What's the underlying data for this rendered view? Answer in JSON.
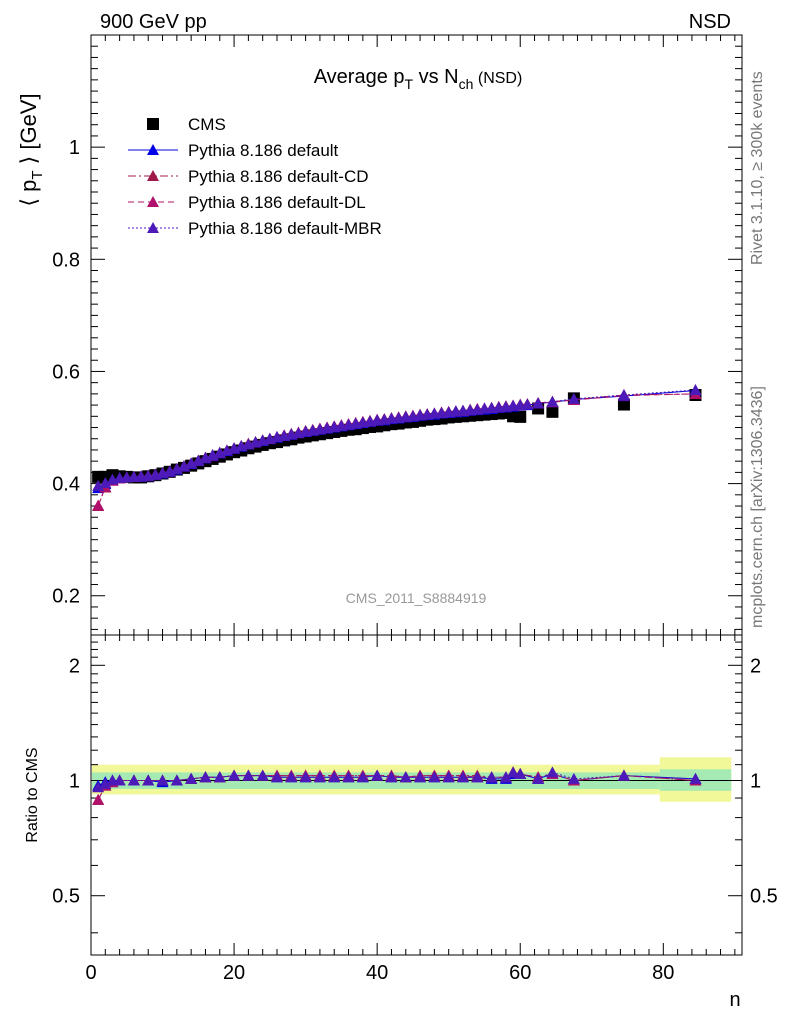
{
  "header": {
    "left_label": "900 GeV pp",
    "right_label": "NSD",
    "side_top": "Rivet 3.1.10, ≥ 300k events",
    "side_bottom": "mcplots.cern.ch [arXiv:1306.3436]",
    "watermark": "CMS_2011_S8884919"
  },
  "title": {
    "main": "Average p",
    "main_sub": "T",
    "mid": " vs N",
    "mid_sub": "ch",
    "suffix": " (NSD)"
  },
  "axes": {
    "ylabel_top": "⟨ p",
    "ylabel_top_sub": "T",
    "ylabel_top_end": " ⟩ [GeV]",
    "ylabel_bottom": "Ratio to CMS",
    "xlabel": "n"
  },
  "legend": [
    {
      "label": "CMS",
      "color": "#000000",
      "marker": "square",
      "line": "none"
    },
    {
      "label": "Pythia 8.186 default",
      "color": "#0000e6",
      "marker": "triangle",
      "line": "solid"
    },
    {
      "label": "Pythia 8.186 default-CD",
      "color": "#a0184a",
      "marker": "triangle",
      "line": "dashdot"
    },
    {
      "label": "Pythia 8.186 default-DL",
      "color": "#b0106a",
      "marker": "triangle",
      "line": "dashed"
    },
    {
      "label": "Pythia 8.186 default-MBR",
      "color": "#4b1ab8",
      "marker": "triangle",
      "line": "dotted"
    }
  ],
  "chart_data": [
    {
      "type": "scatter",
      "xlabel": "n",
      "ylabel": "⟨ pT ⟩ [GeV]",
      "xlim": [
        0,
        91
      ],
      "ylim": [
        0.13,
        1.2
      ],
      "xticks": [
        0,
        20,
        40,
        60,
        80
      ],
      "yticks": [
        0.2,
        0.4,
        0.6,
        0.8,
        1
      ],
      "series": [
        {
          "name": "CMS",
          "x": [
            1,
            2,
            3,
            4,
            5,
            6,
            7,
            8,
            9,
            10,
            11,
            12,
            13,
            14,
            15,
            16,
            17,
            18,
            19,
            20,
            21,
            22,
            23,
            24,
            25,
            26,
            27,
            28,
            29,
            30,
            31,
            32,
            33,
            34,
            35,
            36,
            37,
            38,
            39,
            40,
            41,
            42,
            43,
            44,
            45,
            46,
            47,
            48,
            49,
            50,
            51,
            52,
            53,
            54,
            55,
            56,
            57,
            58,
            59,
            60,
            62.5,
            64.5,
            67.5,
            74.5,
            84.5
          ],
          "y": [
            0.412,
            0.412,
            0.415,
            0.413,
            0.412,
            0.411,
            0.411,
            0.413,
            0.415,
            0.418,
            0.421,
            0.425,
            0.428,
            0.432,
            0.436,
            0.44,
            0.444,
            0.448,
            0.452,
            0.456,
            0.459,
            0.463,
            0.466,
            0.469,
            0.472,
            0.474,
            0.477,
            0.479,
            0.482,
            0.484,
            0.486,
            0.488,
            0.49,
            0.492,
            0.494,
            0.496,
            0.497,
            0.499,
            0.501,
            0.502,
            0.504,
            0.506,
            0.507,
            0.509,
            0.51,
            0.512,
            0.514,
            0.515,
            0.516,
            0.518,
            0.519,
            0.52,
            0.521,
            0.522,
            0.523,
            0.524,
            0.525,
            0.526,
            0.52,
            0.519,
            0.534,
            0.528,
            0.552,
            0.541,
            0.558
          ]
        },
        {
          "name": "Pythia 8.186 default",
          "x": [
            1,
            2,
            3,
            4,
            5,
            6,
            7,
            8,
            9,
            10,
            11,
            12,
            13,
            14,
            15,
            16,
            17,
            18,
            19,
            20,
            21,
            22,
            23,
            24,
            25,
            26,
            27,
            28,
            29,
            30,
            31,
            32,
            33,
            34,
            35,
            36,
            37,
            38,
            39,
            40,
            41,
            42,
            43,
            44,
            45,
            46,
            47,
            48,
            49,
            50,
            51,
            52,
            53,
            54,
            55,
            56,
            57,
            58,
            59,
            60,
            61,
            62.5,
            64.5,
            67.5,
            74.5,
            84.5
          ],
          "y": [
            0.392,
            0.399,
            0.406,
            0.41,
            0.411,
            0.412,
            0.412,
            0.413,
            0.415,
            0.418,
            0.421,
            0.425,
            0.43,
            0.435,
            0.44,
            0.445,
            0.449,
            0.454,
            0.458,
            0.462,
            0.466,
            0.47,
            0.473,
            0.476,
            0.479,
            0.482,
            0.485,
            0.487,
            0.49,
            0.492,
            0.494,
            0.496,
            0.498,
            0.5,
            0.502,
            0.504,
            0.506,
            0.508,
            0.51,
            0.512,
            0.513,
            0.515,
            0.516,
            0.518,
            0.519,
            0.521,
            0.522,
            0.523,
            0.525,
            0.526,
            0.527,
            0.528,
            0.53,
            0.531,
            0.532,
            0.533,
            0.535,
            0.536,
            0.537,
            0.539,
            0.54,
            0.543,
            0.545,
            0.55,
            0.556,
            0.566
          ]
        },
        {
          "name": "Pythia 8.186 default-CD",
          "x": [
            1,
            2,
            3,
            4,
            5,
            6,
            7,
            8,
            9,
            10,
            11,
            12,
            13,
            14,
            15,
            16,
            17,
            18,
            19,
            20,
            21,
            22,
            23,
            24,
            25,
            26,
            27,
            28,
            29,
            30,
            31,
            32,
            33,
            34,
            35,
            36,
            37,
            38,
            39,
            40,
            41,
            42,
            43,
            44,
            45,
            46,
            47,
            48,
            49,
            50,
            51,
            52,
            53,
            54,
            55,
            56,
            57,
            58,
            59,
            60,
            61,
            62.5,
            64.5,
            67.5,
            74.5,
            84.5
          ],
          "y": [
            0.36,
            0.393,
            0.406,
            0.409,
            0.411,
            0.412,
            0.413,
            0.414,
            0.416,
            0.419,
            0.422,
            0.426,
            0.431,
            0.436,
            0.441,
            0.446,
            0.451,
            0.455,
            0.459,
            0.463,
            0.467,
            0.471,
            0.474,
            0.477,
            0.48,
            0.483,
            0.486,
            0.489,
            0.491,
            0.494,
            0.496,
            0.498,
            0.5,
            0.502,
            0.504,
            0.506,
            0.508,
            0.51,
            0.512,
            0.514,
            0.515,
            0.517,
            0.518,
            0.52,
            0.521,
            0.523,
            0.524,
            0.525,
            0.527,
            0.528,
            0.529,
            0.53,
            0.532,
            0.533,
            0.534,
            0.535,
            0.537,
            0.538,
            0.539,
            0.541,
            0.542,
            0.544,
            0.546,
            0.55,
            0.558,
            0.56
          ]
        },
        {
          "name": "Pythia 8.186 default-DL",
          "x": [
            1,
            2,
            3,
            4,
            5,
            6,
            7,
            8,
            9,
            10,
            11,
            12,
            13,
            14,
            15,
            16,
            17,
            18,
            19,
            20,
            21,
            22,
            23,
            24,
            25,
            26,
            27,
            28,
            29,
            30,
            31,
            32,
            33,
            34,
            35,
            36,
            37,
            38,
            39,
            40,
            41,
            42,
            43,
            44,
            45,
            46,
            47,
            48,
            49,
            50,
            51,
            52,
            53,
            54,
            55,
            56,
            57,
            58,
            59,
            60,
            61,
            62.5,
            64.5,
            67.5,
            74.5,
            84.5
          ],
          "y": [
            0.361,
            0.394,
            0.405,
            0.409,
            0.411,
            0.412,
            0.413,
            0.414,
            0.416,
            0.419,
            0.422,
            0.426,
            0.431,
            0.436,
            0.441,
            0.446,
            0.45,
            0.455,
            0.459,
            0.463,
            0.467,
            0.471,
            0.474,
            0.477,
            0.48,
            0.483,
            0.486,
            0.488,
            0.491,
            0.493,
            0.495,
            0.498,
            0.5,
            0.502,
            0.504,
            0.506,
            0.508,
            0.51,
            0.511,
            0.513,
            0.515,
            0.516,
            0.518,
            0.519,
            0.521,
            0.522,
            0.524,
            0.525,
            0.526,
            0.528,
            0.529,
            0.53,
            0.531,
            0.533,
            0.534,
            0.535,
            0.536,
            0.538,
            0.539,
            0.54,
            0.541,
            0.543,
            0.545,
            0.549,
            0.557,
            0.56
          ]
        },
        {
          "name": "Pythia 8.186 default-MBR",
          "x": [
            1,
            2,
            3,
            4,
            5,
            6,
            7,
            8,
            9,
            10,
            11,
            12,
            13,
            14,
            15,
            16,
            17,
            18,
            19,
            20,
            21,
            22,
            23,
            24,
            25,
            26,
            27,
            28,
            29,
            30,
            31,
            32,
            33,
            34,
            35,
            36,
            37,
            38,
            39,
            40,
            41,
            42,
            43,
            44,
            45,
            46,
            47,
            48,
            49,
            50,
            51,
            52,
            53,
            54,
            55,
            56,
            57,
            58,
            59,
            60,
            61,
            62.5,
            64.5,
            67.5,
            74.5,
            84.5
          ],
          "y": [
            0.396,
            0.401,
            0.407,
            0.41,
            0.411,
            0.412,
            0.413,
            0.414,
            0.416,
            0.419,
            0.422,
            0.426,
            0.431,
            0.436,
            0.441,
            0.446,
            0.451,
            0.455,
            0.459,
            0.463,
            0.467,
            0.47,
            0.474,
            0.477,
            0.48,
            0.483,
            0.485,
            0.488,
            0.49,
            0.493,
            0.495,
            0.497,
            0.499,
            0.501,
            0.503,
            0.505,
            0.507,
            0.509,
            0.511,
            0.513,
            0.514,
            0.516,
            0.517,
            0.519,
            0.52,
            0.522,
            0.523,
            0.525,
            0.526,
            0.527,
            0.529,
            0.53,
            0.531,
            0.532,
            0.534,
            0.535,
            0.536,
            0.537,
            0.539,
            0.54,
            0.541,
            0.543,
            0.546,
            0.551,
            0.558,
            0.567
          ]
        }
      ]
    },
    {
      "type": "scatter",
      "xlabel": "n",
      "ylabel": "Ratio to CMS",
      "xlim": [
        0,
        91
      ],
      "ylim": [
        0.35,
        2.4
      ],
      "yscale": "log",
      "yticks": [
        0.5,
        1,
        2
      ],
      "band_note": "green and yellow uncertainty bands around ratio 1",
      "series": [
        {
          "name": "Pythia 8.186 default",
          "x": [
            1,
            2,
            3,
            4,
            6,
            8,
            10,
            12,
            14,
            16,
            18,
            20,
            22,
            24,
            26,
            28,
            30,
            32,
            34,
            36,
            38,
            40,
            42,
            44,
            46,
            48,
            50,
            52,
            54,
            56,
            58,
            59,
            60,
            62.5,
            64.5,
            67.5,
            74.5,
            84.5
          ],
          "y": [
            0.97,
            0.99,
            1.0,
            1.0,
            1.0,
            1.0,
            0.99,
            1.0,
            1.01,
            1.02,
            1.02,
            1.03,
            1.03,
            1.03,
            1.02,
            1.02,
            1.02,
            1.02,
            1.02,
            1.02,
            1.02,
            1.03,
            1.02,
            1.02,
            1.02,
            1.02,
            1.02,
            1.02,
            1.02,
            1.01,
            1.01,
            1.04,
            1.04,
            1.01,
            1.04,
            1.0,
            1.03,
            1.01
          ]
        },
        {
          "name": "Pythia 8.186 default-CD",
          "x": [
            1,
            2,
            3,
            4,
            6,
            8,
            10,
            12,
            14,
            16,
            18,
            20,
            22,
            24,
            26,
            28,
            30,
            32,
            34,
            36,
            38,
            40,
            42,
            44,
            46,
            48,
            50,
            52,
            54,
            56,
            58,
            59,
            60,
            62.5,
            64.5,
            67.5,
            74.5,
            84.5
          ],
          "y": [
            0.89,
            0.97,
            0.99,
            1.0,
            1.0,
            1.0,
            1.0,
            1.0,
            1.01,
            1.02,
            1.02,
            1.03,
            1.03,
            1.03,
            1.03,
            1.03,
            1.03,
            1.03,
            1.03,
            1.03,
            1.03,
            1.03,
            1.03,
            1.02,
            1.03,
            1.03,
            1.03,
            1.03,
            1.03,
            1.02,
            1.02,
            1.05,
            1.04,
            1.02,
            1.04,
            1.0,
            1.03,
            1.0
          ]
        },
        {
          "name": "Pythia 8.186 default-DL",
          "x": [
            1,
            2,
            3,
            4,
            6,
            8,
            10,
            12,
            14,
            16,
            18,
            20,
            22,
            24,
            26,
            28,
            30,
            32,
            34,
            36,
            38,
            40,
            42,
            44,
            46,
            48,
            50,
            52,
            54,
            56,
            58,
            59,
            60,
            62.5,
            64.5,
            67.5,
            74.5,
            84.5
          ],
          "y": [
            0.89,
            0.97,
            0.99,
            1.0,
            1.0,
            1.0,
            1.0,
            1.0,
            1.01,
            1.02,
            1.02,
            1.03,
            1.03,
            1.03,
            1.03,
            1.03,
            1.03,
            1.03,
            1.03,
            1.03,
            1.03,
            1.03,
            1.03,
            1.02,
            1.03,
            1.03,
            1.03,
            1.03,
            1.02,
            1.02,
            1.02,
            1.05,
            1.04,
            1.02,
            1.04,
            1.0,
            1.03,
            1.0
          ]
        },
        {
          "name": "Pythia 8.186 default-MBR",
          "x": [
            1,
            2,
            3,
            4,
            6,
            8,
            10,
            12,
            14,
            16,
            18,
            20,
            22,
            24,
            26,
            28,
            30,
            32,
            34,
            36,
            38,
            40,
            42,
            44,
            46,
            48,
            50,
            52,
            54,
            56,
            58,
            59,
            60,
            62.5,
            64.5,
            67.5,
            74.5,
            84.5
          ],
          "y": [
            0.96,
            0.98,
            1.0,
            1.0,
            1.0,
            1.0,
            1.0,
            1.0,
            1.01,
            1.02,
            1.02,
            1.03,
            1.03,
            1.03,
            1.02,
            1.02,
            1.02,
            1.02,
            1.02,
            1.02,
            1.02,
            1.03,
            1.02,
            1.02,
            1.02,
            1.02,
            1.02,
            1.02,
            1.02,
            1.02,
            1.02,
            1.05,
            1.04,
            1.01,
            1.05,
            1.01,
            1.03,
            1.01
          ]
        }
      ]
    }
  ]
}
